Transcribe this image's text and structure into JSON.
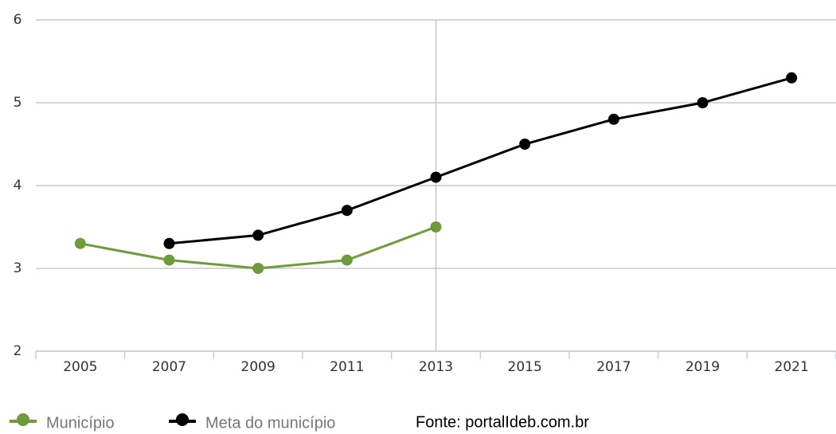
{
  "chart_data": {
    "type": "line",
    "categories": [
      "2005",
      "2007",
      "2009",
      "2011",
      "2013",
      "2015",
      "2017",
      "2019",
      "2021"
    ],
    "series": [
      {
        "name": "Município",
        "color": "#6f9c3a",
        "values": [
          3.3,
          3.1,
          3.0,
          3.1,
          3.5,
          null,
          null,
          null,
          null
        ]
      },
      {
        "name": "Meta do município",
        "color": "#000000",
        "values": [
          null,
          3.3,
          3.4,
          3.7,
          4.1,
          4.5,
          4.8,
          5.0,
          5.3
        ]
      }
    ],
    "ylim": [
      2,
      6
    ],
    "yticks": [
      2,
      3,
      4,
      5,
      6
    ],
    "grid": true,
    "source": "Fonte: portalIdeb.com.br"
  }
}
